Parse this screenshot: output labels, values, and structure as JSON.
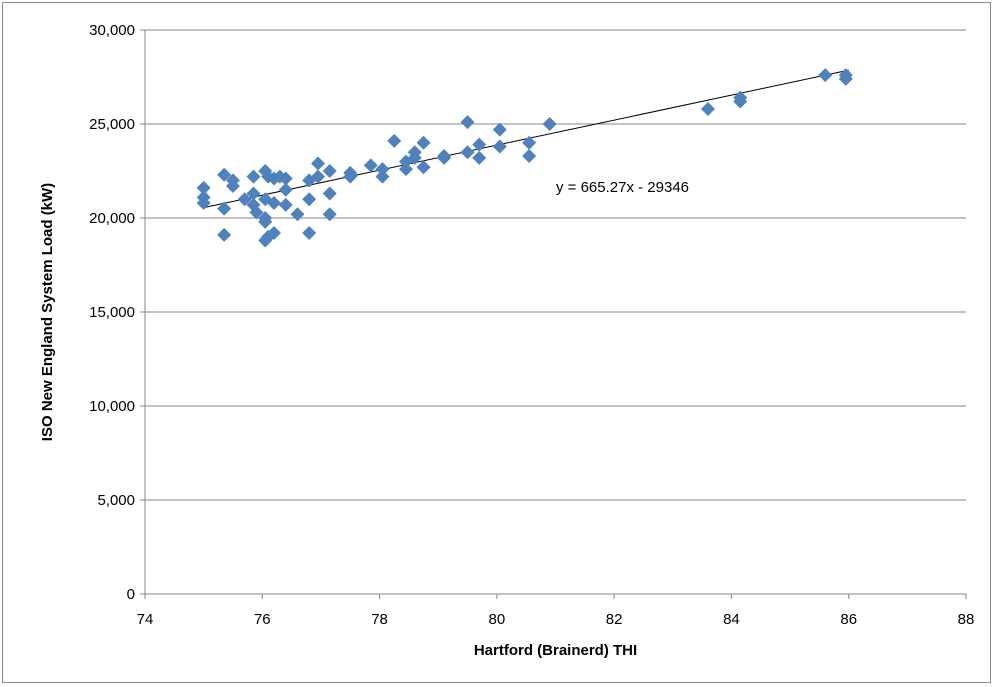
{
  "chart_data": {
    "type": "scatter",
    "title": "",
    "xlabel": "Hartford (Brainerd) THI",
    "ylabel": "ISO New England System Load (kW)",
    "xlim": [
      74,
      88
    ],
    "ylim": [
      0,
      30000
    ],
    "x_ticks": [
      74,
      76,
      78,
      80,
      82,
      84,
      86,
      88
    ],
    "x_tick_labels": [
      "74",
      "76",
      "78",
      "80",
      "82",
      "84",
      "86",
      "88"
    ],
    "y_ticks": [
      0,
      5000,
      10000,
      15000,
      20000,
      25000,
      30000
    ],
    "y_tick_labels": [
      "0",
      "5,000",
      "10,000",
      "15,000",
      "20,000",
      "25,000",
      "30,000"
    ],
    "grid": "horizontal major gridlines",
    "marker_color": "#4f81bd",
    "marker_shape": "diamond",
    "trendline": {
      "type": "linear",
      "slope": 665.27,
      "intercept": -29346,
      "x_range": [
        75,
        86
      ],
      "color": "#000000",
      "label": "y = 665.27x - 29346"
    },
    "points": [
      {
        "x": 75.0,
        "y": 21600
      },
      {
        "x": 75.0,
        "y": 21100
      },
      {
        "x": 75.0,
        "y": 20800
      },
      {
        "x": 75.35,
        "y": 22300
      },
      {
        "x": 75.35,
        "y": 20500
      },
      {
        "x": 75.35,
        "y": 19100
      },
      {
        "x": 75.5,
        "y": 22000
      },
      {
        "x": 75.5,
        "y": 21700
      },
      {
        "x": 75.7,
        "y": 21000
      },
      {
        "x": 75.85,
        "y": 22200
      },
      {
        "x": 75.85,
        "y": 21300
      },
      {
        "x": 75.85,
        "y": 20700
      },
      {
        "x": 75.9,
        "y": 20300
      },
      {
        "x": 76.05,
        "y": 22500
      },
      {
        "x": 76.05,
        "y": 21000
      },
      {
        "x": 76.05,
        "y": 20000
      },
      {
        "x": 76.05,
        "y": 19800
      },
      {
        "x": 76.05,
        "y": 18800
      },
      {
        "x": 76.1,
        "y": 22200
      },
      {
        "x": 76.1,
        "y": 19000
      },
      {
        "x": 76.2,
        "y": 22100
      },
      {
        "x": 76.2,
        "y": 20800
      },
      {
        "x": 76.2,
        "y": 19200
      },
      {
        "x": 76.3,
        "y": 22200
      },
      {
        "x": 76.4,
        "y": 22100
      },
      {
        "x": 76.4,
        "y": 21500
      },
      {
        "x": 76.4,
        "y": 20700
      },
      {
        "x": 76.6,
        "y": 20200
      },
      {
        "x": 76.8,
        "y": 22000
      },
      {
        "x": 76.8,
        "y": 21000
      },
      {
        "x": 76.8,
        "y": 19200
      },
      {
        "x": 76.95,
        "y": 22900
      },
      {
        "x": 76.95,
        "y": 22200
      },
      {
        "x": 77.15,
        "y": 22500
      },
      {
        "x": 77.15,
        "y": 21300
      },
      {
        "x": 77.15,
        "y": 20200
      },
      {
        "x": 77.5,
        "y": 22400
      },
      {
        "x": 77.5,
        "y": 22200
      },
      {
        "x": 77.85,
        "y": 22800
      },
      {
        "x": 78.05,
        "y": 22600
      },
      {
        "x": 78.05,
        "y": 22200
      },
      {
        "x": 78.25,
        "y": 24100
      },
      {
        "x": 78.45,
        "y": 23000
      },
      {
        "x": 78.45,
        "y": 22600
      },
      {
        "x": 78.6,
        "y": 23500
      },
      {
        "x": 78.6,
        "y": 23200
      },
      {
        "x": 78.75,
        "y": 24000
      },
      {
        "x": 78.75,
        "y": 22700
      },
      {
        "x": 79.1,
        "y": 23300
      },
      {
        "x": 79.1,
        "y": 23200
      },
      {
        "x": 79.5,
        "y": 25100
      },
      {
        "x": 79.5,
        "y": 23500
      },
      {
        "x": 79.7,
        "y": 23900
      },
      {
        "x": 79.7,
        "y": 23200
      },
      {
        "x": 80.05,
        "y": 24700
      },
      {
        "x": 80.05,
        "y": 23800
      },
      {
        "x": 80.55,
        "y": 24000
      },
      {
        "x": 80.55,
        "y": 23300
      },
      {
        "x": 80.9,
        "y": 25000
      },
      {
        "x": 83.6,
        "y": 25800
      },
      {
        "x": 84.15,
        "y": 26400
      },
      {
        "x": 84.15,
        "y": 26200
      },
      {
        "x": 85.6,
        "y": 27600
      },
      {
        "x": 85.95,
        "y": 27600
      },
      {
        "x": 85.95,
        "y": 27400
      }
    ]
  }
}
